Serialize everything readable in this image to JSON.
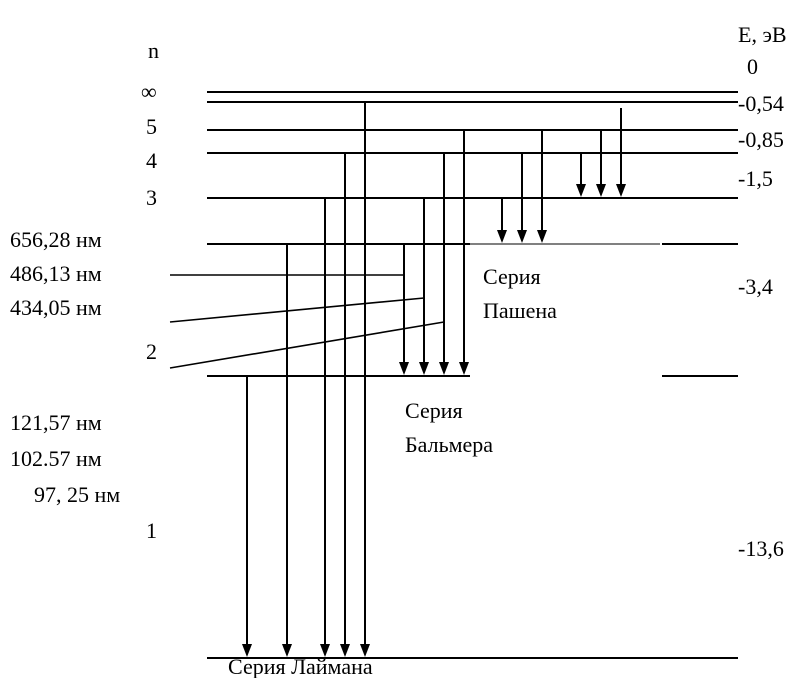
{
  "header": {
    "n_label": "n",
    "energy_label": "E, эВ"
  },
  "levels": [
    {
      "n": "∞",
      "energy": "0"
    },
    {
      "n": "5",
      "energy": "-0,54"
    },
    {
      "n": "4",
      "energy": "-0,85"
    },
    {
      "n": "3",
      "energy": "-1,5"
    },
    {
      "n": "2",
      "energy": "-3,4"
    },
    {
      "n": "1",
      "energy": "-13,6"
    }
  ],
  "balmer_wavelengths": [
    "656,28 нм",
    "486,13 нм",
    "434,05 нм"
  ],
  "lyman_wavelengths": [
    "121,57 нм",
    "102.57 нм",
    "97, 25 нм"
  ],
  "series": {
    "lyman": "Серия Лаймана",
    "balmer_line1": "Серия",
    "balmer_line2": "Бальмера",
    "paschen_line1": "Серия",
    "paschen_line2": "Пашена"
  }
}
